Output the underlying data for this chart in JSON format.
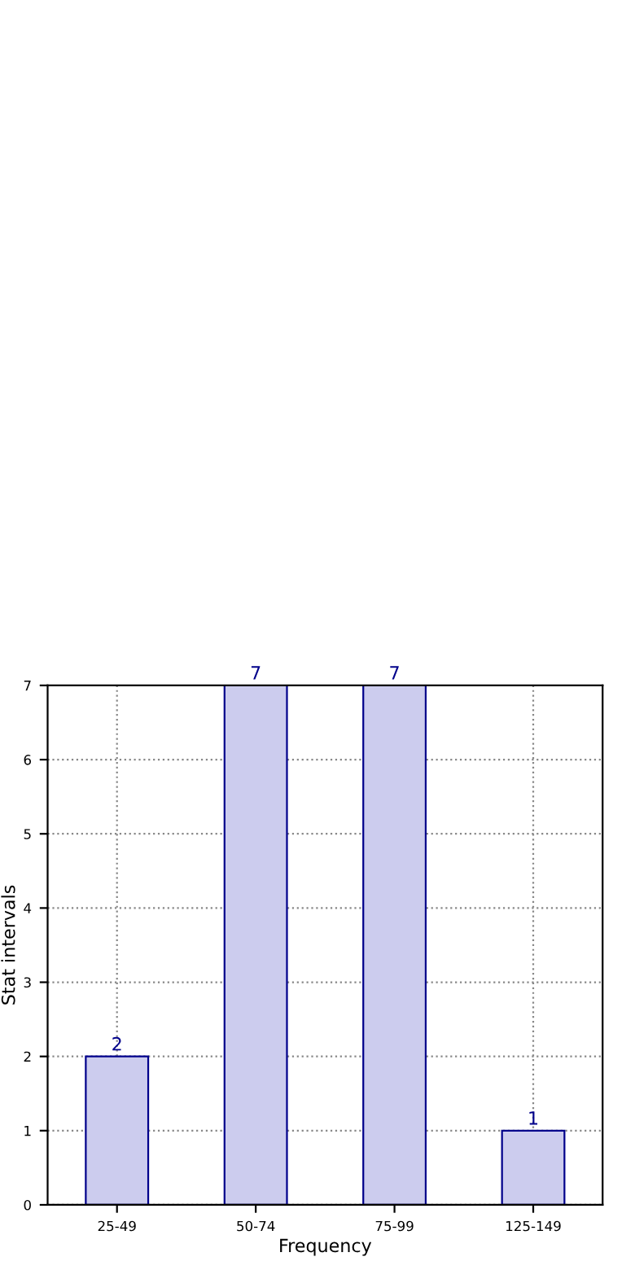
{
  "chart_data": {
    "type": "bar",
    "xlabel": "Frequency",
    "ylabel": "Stat intervals",
    "categories": [
      "25-49",
      "50-74",
      "75-99",
      "125-149"
    ],
    "values": [
      2,
      7,
      7,
      1
    ],
    "color": "#ccccee",
    "ylim": [
      0,
      7
    ],
    "yticks": [
      0,
      1,
      2,
      3,
      4,
      5,
      6,
      7
    ],
    "grid": true,
    "data_labels": true
  }
}
